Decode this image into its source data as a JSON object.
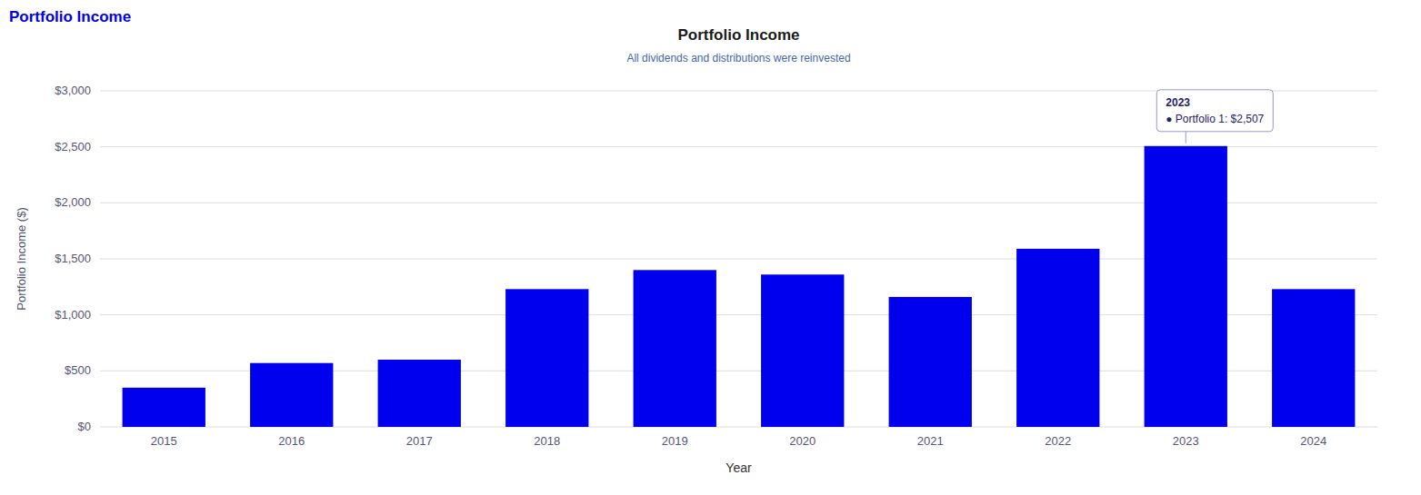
{
  "chart_data": {
    "type": "bar",
    "title": "Portfolio Income",
    "subtitle": "All dividends and distributions were reinvested",
    "header": "Portfolio Income",
    "xlabel": "Year",
    "ylabel": "Portfolio Income ($)",
    "categories": [
      2015,
      2016,
      2017,
      2018,
      2019,
      2020,
      2021,
      2022,
      2023,
      2024
    ],
    "values": [
      350,
      570,
      600,
      1230,
      1400,
      1360,
      1160,
      1590,
      2507,
      1230
    ],
    "color": "#0000ee",
    "ylim": [
      0,
      3000
    ],
    "yticks": [
      {
        "value": 0,
        "label": "$0"
      },
      {
        "value": 500,
        "label": "$500"
      },
      {
        "value": 1000,
        "label": "$1,000"
      },
      {
        "value": 1500,
        "label": "$1,500"
      },
      {
        "value": 2000,
        "label": "$2,000"
      },
      {
        "value": 2500,
        "label": "$2,500"
      },
      {
        "value": 3000,
        "label": "$3,000"
      }
    ],
    "grid": true,
    "annotations": [
      {
        "category": 2023,
        "value": 2507,
        "title": "2023",
        "text": "● Portfolio 1: $2,507"
      }
    ]
  }
}
